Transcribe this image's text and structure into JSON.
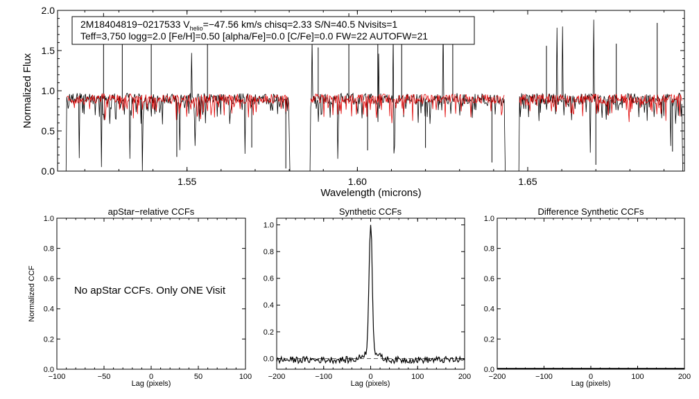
{
  "colors": {
    "observed": "#000000",
    "model": "#e00000",
    "axis": "#000000",
    "dashed": "#555555"
  },
  "chart_data": [
    {
      "type": "line",
      "id": "spectrum",
      "xlabel": "Wavelength (microns)",
      "ylabel": "Normalized Flux",
      "xlim": [
        1.512,
        1.696
      ],
      "ylim": [
        0.0,
        2.0
      ],
      "xticks": [
        "1.55",
        "1.60",
        "1.65"
      ],
      "xtick_values": [
        1.55,
        1.6,
        1.65
      ],
      "yticks": [
        "0.0",
        "0.5",
        "1.0",
        "1.5",
        "2.0"
      ],
      "ytick_values": [
        0.0,
        0.5,
        1.0,
        1.5,
        2.0
      ],
      "chips": [
        [
          1.5145,
          1.5802
        ],
        [
          1.5861,
          1.6434
        ],
        [
          1.6474,
          1.6955
        ]
      ],
      "continuum": 0.9,
      "series": [
        {
          "name": "observed spectrum (black)"
        },
        {
          "name": "best-fit model (red)"
        }
      ],
      "annotation": {
        "line1_prefix": "2M18404819−0217533  V",
        "line1_sub": "helio",
        "line1_rest": "=−47.56 km/s  chisq=2.33  S/N=40.5  Nvisits=1",
        "line2": "Teff=3,750 logg=2.0 [Fe/H]=0.50 [alpha/Fe]=0.0 [C/Fe]=0.0 FW=22 AUTOFW=21"
      }
    },
    {
      "type": "line",
      "id": "apstar_ccf",
      "title": "apStar−relative CCFs",
      "xlabel": "Lag (pixels)",
      "ylabel": "Normalized CCF",
      "xlim": [
        -100,
        100
      ],
      "ylim": [
        0.0,
        1.0
      ],
      "xticks": [
        "−100",
        "−50",
        "0",
        "50",
        "100"
      ],
      "xtick_values": [
        -100,
        -50,
        0,
        50,
        100
      ],
      "yticks": [
        "0.0",
        "0.2",
        "0.4",
        "0.6",
        "0.8",
        "1.0"
      ],
      "ytick_values": [
        0,
        0.2,
        0.4,
        0.6,
        0.8,
        1.0
      ],
      "message": "No apStar CCFs.  Only ONE Visit"
    },
    {
      "type": "line",
      "id": "synthetic_ccf",
      "title": "Synthetic CCFs",
      "xlabel": "Lag (pixels)",
      "xlim": [
        -200,
        200
      ],
      "ylim": [
        -0.08,
        1.05
      ],
      "xticks": [
        "−200",
        "−100",
        "0",
        "100",
        "200"
      ],
      "xtick_values": [
        -200,
        -100,
        0,
        100,
        200
      ],
      "yticks": [
        "0.0",
        "0.2",
        "0.4",
        "0.6",
        "0.8",
        "1.0"
      ],
      "ytick_values": [
        0,
        0.2,
        0.4,
        0.6,
        0.8,
        1.0
      ],
      "peak_lag": 0,
      "peak_value": 1.0,
      "baseline": 0.0
    },
    {
      "type": "line",
      "id": "difference_ccf",
      "title": "Difference Synthetic CCFs",
      "xlabel": "Lag (pixels)",
      "xlim": [
        -200,
        200
      ],
      "ylim": [
        0.0,
        1.0
      ],
      "xticks": [
        "−200",
        "−100",
        "0",
        "100",
        "200"
      ],
      "xtick_values": [
        -200,
        -100,
        0,
        100,
        200
      ],
      "yticks": [
        "0.0",
        "0.2",
        "0.4",
        "0.6",
        "0.8",
        "1.0"
      ],
      "ytick_values": [
        0,
        0.2,
        0.4,
        0.6,
        0.8,
        1.0
      ],
      "values": 0.0
    }
  ]
}
